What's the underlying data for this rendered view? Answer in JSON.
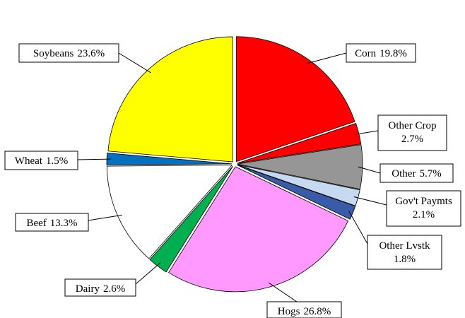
{
  "chart_data": {
    "type": "pie",
    "categories": [
      "Corn",
      "Other Crop",
      "Other",
      "Gov't Paymts",
      "Other Lvstk",
      "Hogs",
      "Dairy",
      "Beef",
      "Wheat",
      "Soybeans"
    ],
    "values": [
      19.8,
      2.7,
      5.7,
      2.1,
      1.8,
      26.8,
      2.6,
      13.3,
      1.5,
      23.6
    ],
    "value_labels": [
      "19.8%",
      "2.7%",
      "5.7%",
      "2.1%",
      "1.8%",
      "26.8%",
      "2.6%",
      "13.3%",
      "1.5%",
      "23.6%"
    ],
    "colors": [
      "#ff0000",
      "#ff0000",
      "#969696",
      "#c6d9f1",
      "#3a5ca8",
      "#ff99ff",
      "#00b050",
      "#ffffff",
      "#0070c0",
      "#ffff00"
    ]
  }
}
